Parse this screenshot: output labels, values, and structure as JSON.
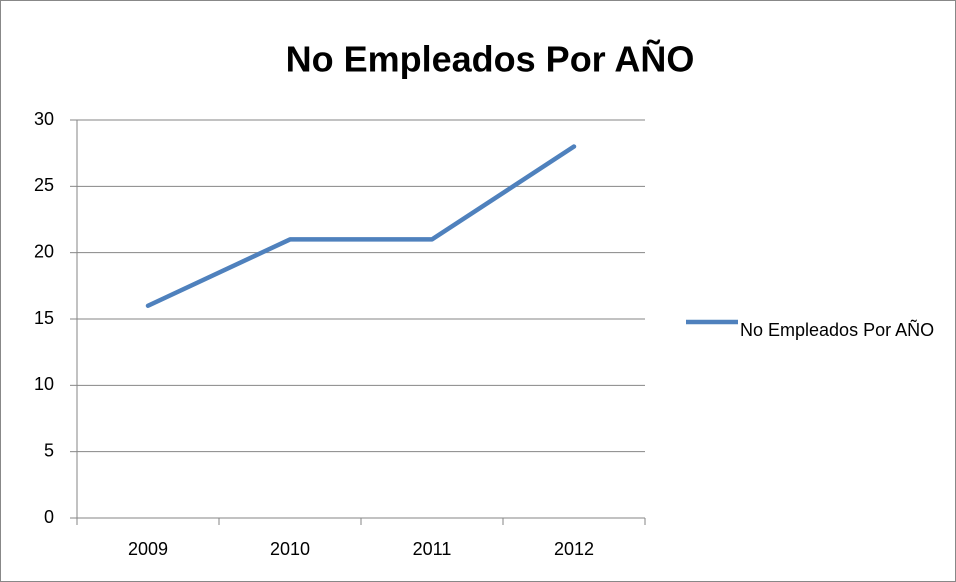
{
  "chart_data": {
    "type": "line",
    "title": "No Empleados Por AÑO",
    "categories": [
      "2009",
      "2010",
      "2011",
      "2012"
    ],
    "series": [
      {
        "name": "No Empleados Por AÑO",
        "color": "#4f81bd",
        "values": [
          16,
          21,
          21,
          28
        ]
      }
    ],
    "ylim": [
      0,
      30
    ],
    "yticks": [
      0,
      5,
      10,
      15,
      20,
      25,
      30
    ],
    "grid": true,
    "legend": "right"
  }
}
